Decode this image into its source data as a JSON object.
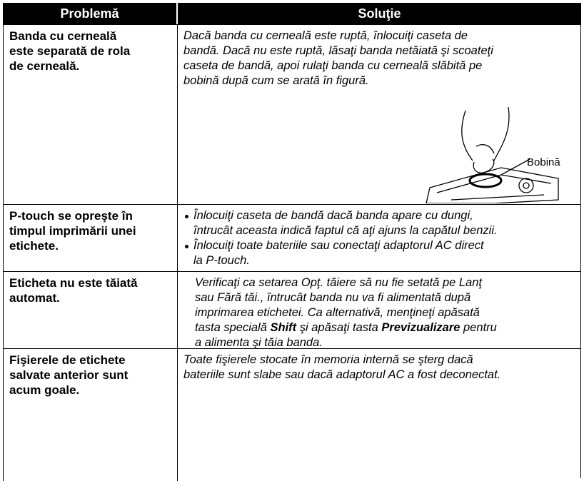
{
  "table": {
    "header": [
      "Problemă",
      "Soluţie"
    ],
    "rows": [
      {
        "problem": [
          "Banda cu cerneală",
          "este separată de rola",
          "de cerneală."
        ],
        "solution": [
          "Dacă banda cu cerneală este ruptă, înlocuiţi caseta de",
          "bandă. Dacă nu este ruptă, lăsaţi banda netăiată şi scoateţi",
          "caseta de bandă, apoi rulaţi banda cu cerneală slăbită pe",
          "bobină după cum se arată în figură."
        ],
        "figure_label": "Bobină"
      },
      {
        "problem": [
          "P-touch se opreşte în",
          "timpul imprimării unei",
          "etichete."
        ],
        "bullets": [
          [
            "Înlocuiţi caseta de bandă dacă banda apare cu dungi,",
            "întrucât aceasta indică faptul că aţi ajuns la capătul benzii."
          ],
          [
            "Înlocuiţi toate bateriile sau conectaţi adaptorul AC direct",
            "la P-touch."
          ]
        ]
      },
      {
        "problem": [
          "Eticheta nu este tăiată",
          "automat."
        ],
        "solution": [
          "Verificaţi ca setarea Opţ. tăiere să nu fie setată pe Lanţ",
          "sau Fără tăi., întrucât banda nu va fi alimentată după",
          "imprimarea etichetei. Ca alternativă, menţineţi apăsată",
          [
            "tasta specială ",
            "Shift",
            " şi apăsaţi tasta ",
            "Previzualizare",
            " pentru"
          ],
          "a alimenta şi tăia banda."
        ]
      },
      {
        "problem": [
          "Fişierele de etichete",
          "salvate anterior sunt",
          "acum goale."
        ],
        "solution": [
          "Toate fişierele stocate în memoria internă se şterg dacă",
          "bateriile sunt slabe sau dacă adaptorul AC a fost deconectat."
        ]
      }
    ]
  }
}
